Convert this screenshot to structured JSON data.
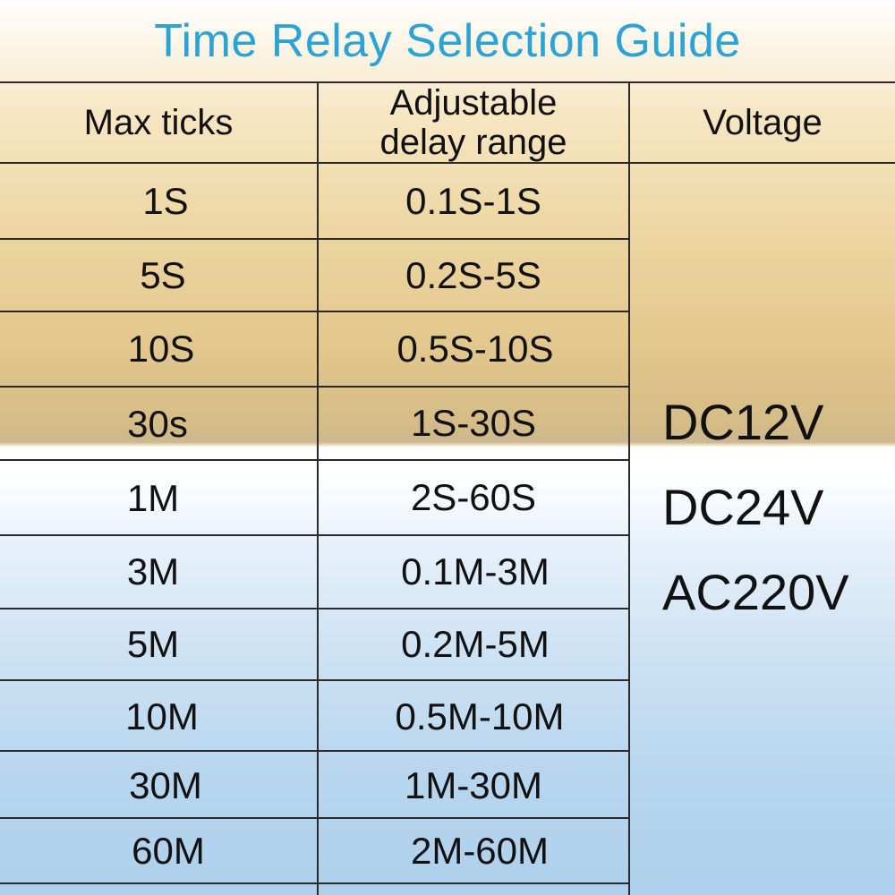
{
  "title": "Time Relay Selection Guide",
  "table": {
    "headers": {
      "max_ticks": "Max ticks",
      "delay_range_line1": "Adjustable",
      "delay_range_line2": "delay range",
      "voltage": "Voltage"
    },
    "rows": [
      {
        "max_ticks": "1S",
        "range": "0.1S-1S"
      },
      {
        "max_ticks": "5S",
        "range": "0.2S-5S"
      },
      {
        "max_ticks": "10S",
        "range": "0.5S-10S"
      },
      {
        "max_ticks": "30s",
        "range": "1S-30S"
      },
      {
        "max_ticks": "1M",
        "range": "2S-60S"
      },
      {
        "max_ticks": "3M",
        "range": "0.1M-3M"
      },
      {
        "max_ticks": "5M",
        "range": "0.2M-5M"
      },
      {
        "max_ticks": "10M",
        "range": "0.5M-10M"
      },
      {
        "max_ticks": "30M",
        "range": "1M-30M"
      },
      {
        "max_ticks": "60M",
        "range": "2M-60M"
      }
    ],
    "voltages": [
      "DC12V",
      "DC24V",
      "AC220V"
    ]
  }
}
